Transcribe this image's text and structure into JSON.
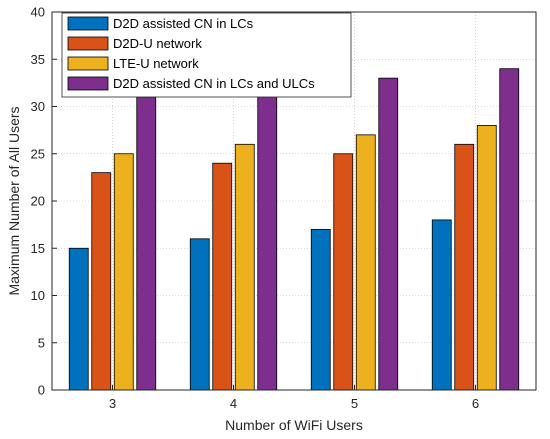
{
  "chart_data": {
    "type": "bar",
    "categories": [
      "3",
      "4",
      "5",
      "6"
    ],
    "series": [
      {
        "name": "D2D assisted CN in LCs",
        "values": [
          15,
          16,
          17,
          18
        ],
        "color": "#0072BD"
      },
      {
        "name": "D2D-U network",
        "values": [
          23,
          24,
          25,
          26
        ],
        "color": "#D95319"
      },
      {
        "name": "LTE-U network",
        "values": [
          25,
          26,
          27,
          28
        ],
        "color": "#EDB120"
      },
      {
        "name": "D2D assisted CN in LCs and ULCs",
        "values": [
          31,
          32,
          33,
          34
        ],
        "color": "#7E2F8E"
      }
    ],
    "xlabel": "Number of WiFi Users",
    "ylabel": "Maximum Number of All Users",
    "ylim": [
      0,
      40
    ],
    "yticks": [
      0,
      5,
      10,
      15,
      20,
      25,
      30,
      35,
      40
    ],
    "grid": true,
    "legend_position": "top-left"
  }
}
